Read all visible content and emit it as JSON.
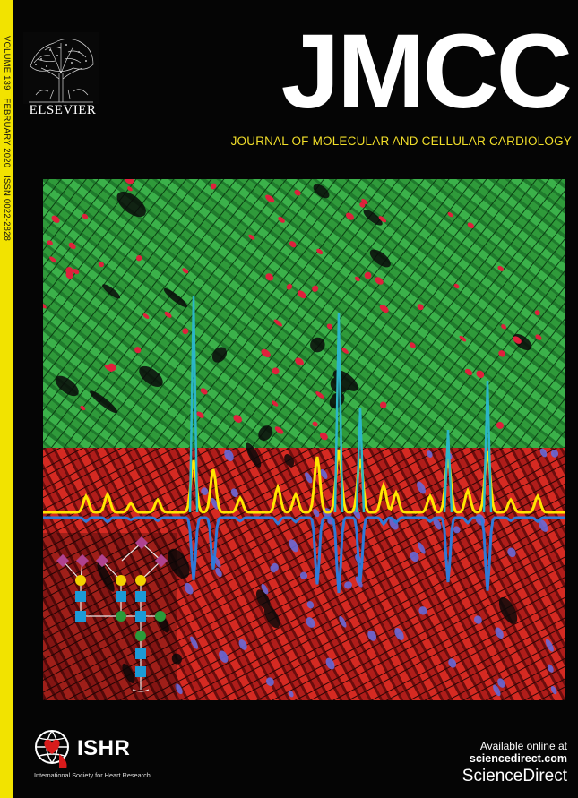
{
  "spine": {
    "volume": "VOLUME 139",
    "date": "FEBRUARY 2020",
    "issn": "ISSN 0022-2828"
  },
  "publisher": {
    "name": "ELSEVIER",
    "logo_icon": "elsevier-tree-icon"
  },
  "journal": {
    "title": "JMCC",
    "subtitle": "JOURNAL OF MOLECULAR AND CELLULAR CARDIOLOGY"
  },
  "society": {
    "abbreviation": "ISHR",
    "name": "International Society for Heart Research",
    "logo_icon": "globe-heart-icon"
  },
  "availability": {
    "line": "Available online at",
    "site": "sciencedirect.com",
    "brand": "ScienceDirect"
  },
  "colors": {
    "background": "#050505",
    "spine": "#f2e300",
    "subtitle": "#f2df2a",
    "tissue_top": "#2f9a3a",
    "tissue_bottom": "#c8201c",
    "trace_yellow": "#ffe600",
    "trace_blue": "#2f7ad8",
    "spike_cyan": "#2bb5c8",
    "glycan_diamond": "#b0428f",
    "glycan_circle_yellow": "#f2d200",
    "glycan_square": "#1c9ad6",
    "glycan_circle_green": "#2a9a3a"
  }
}
